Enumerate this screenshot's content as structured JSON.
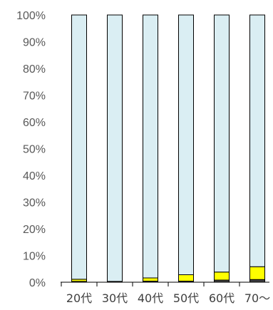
{
  "chart_data": {
    "type": "bar",
    "stacked": true,
    "percent_axis": true,
    "categories": [
      "20代",
      "30代",
      "40代",
      "50代",
      "60代",
      "70〜"
    ],
    "series": [
      {
        "values": [
          0.3,
          0.1,
          0.4,
          0.4,
          0.8,
          1.0
        ],
        "color": "#404040"
      },
      {
        "values": [
          0.8,
          0.2,
          1.2,
          2.4,
          3.0,
          4.8
        ],
        "color": "#ffff00"
      },
      {
        "values": [
          98.9,
          99.7,
          98.4,
          97.2,
          96.2,
          94.2
        ],
        "color": "#daeef3"
      }
    ],
    "ylim": [
      0,
      100
    ],
    "yticks": [
      "0%",
      "10%",
      "20%",
      "30%",
      "40%",
      "50%",
      "60%",
      "70%",
      "80%",
      "90%",
      "100%"
    ],
    "grid": false,
    "legend": "none",
    "colors": {
      "bar_stroke": "#000000",
      "axis": "#000000",
      "tick_label": "#595959"
    }
  }
}
